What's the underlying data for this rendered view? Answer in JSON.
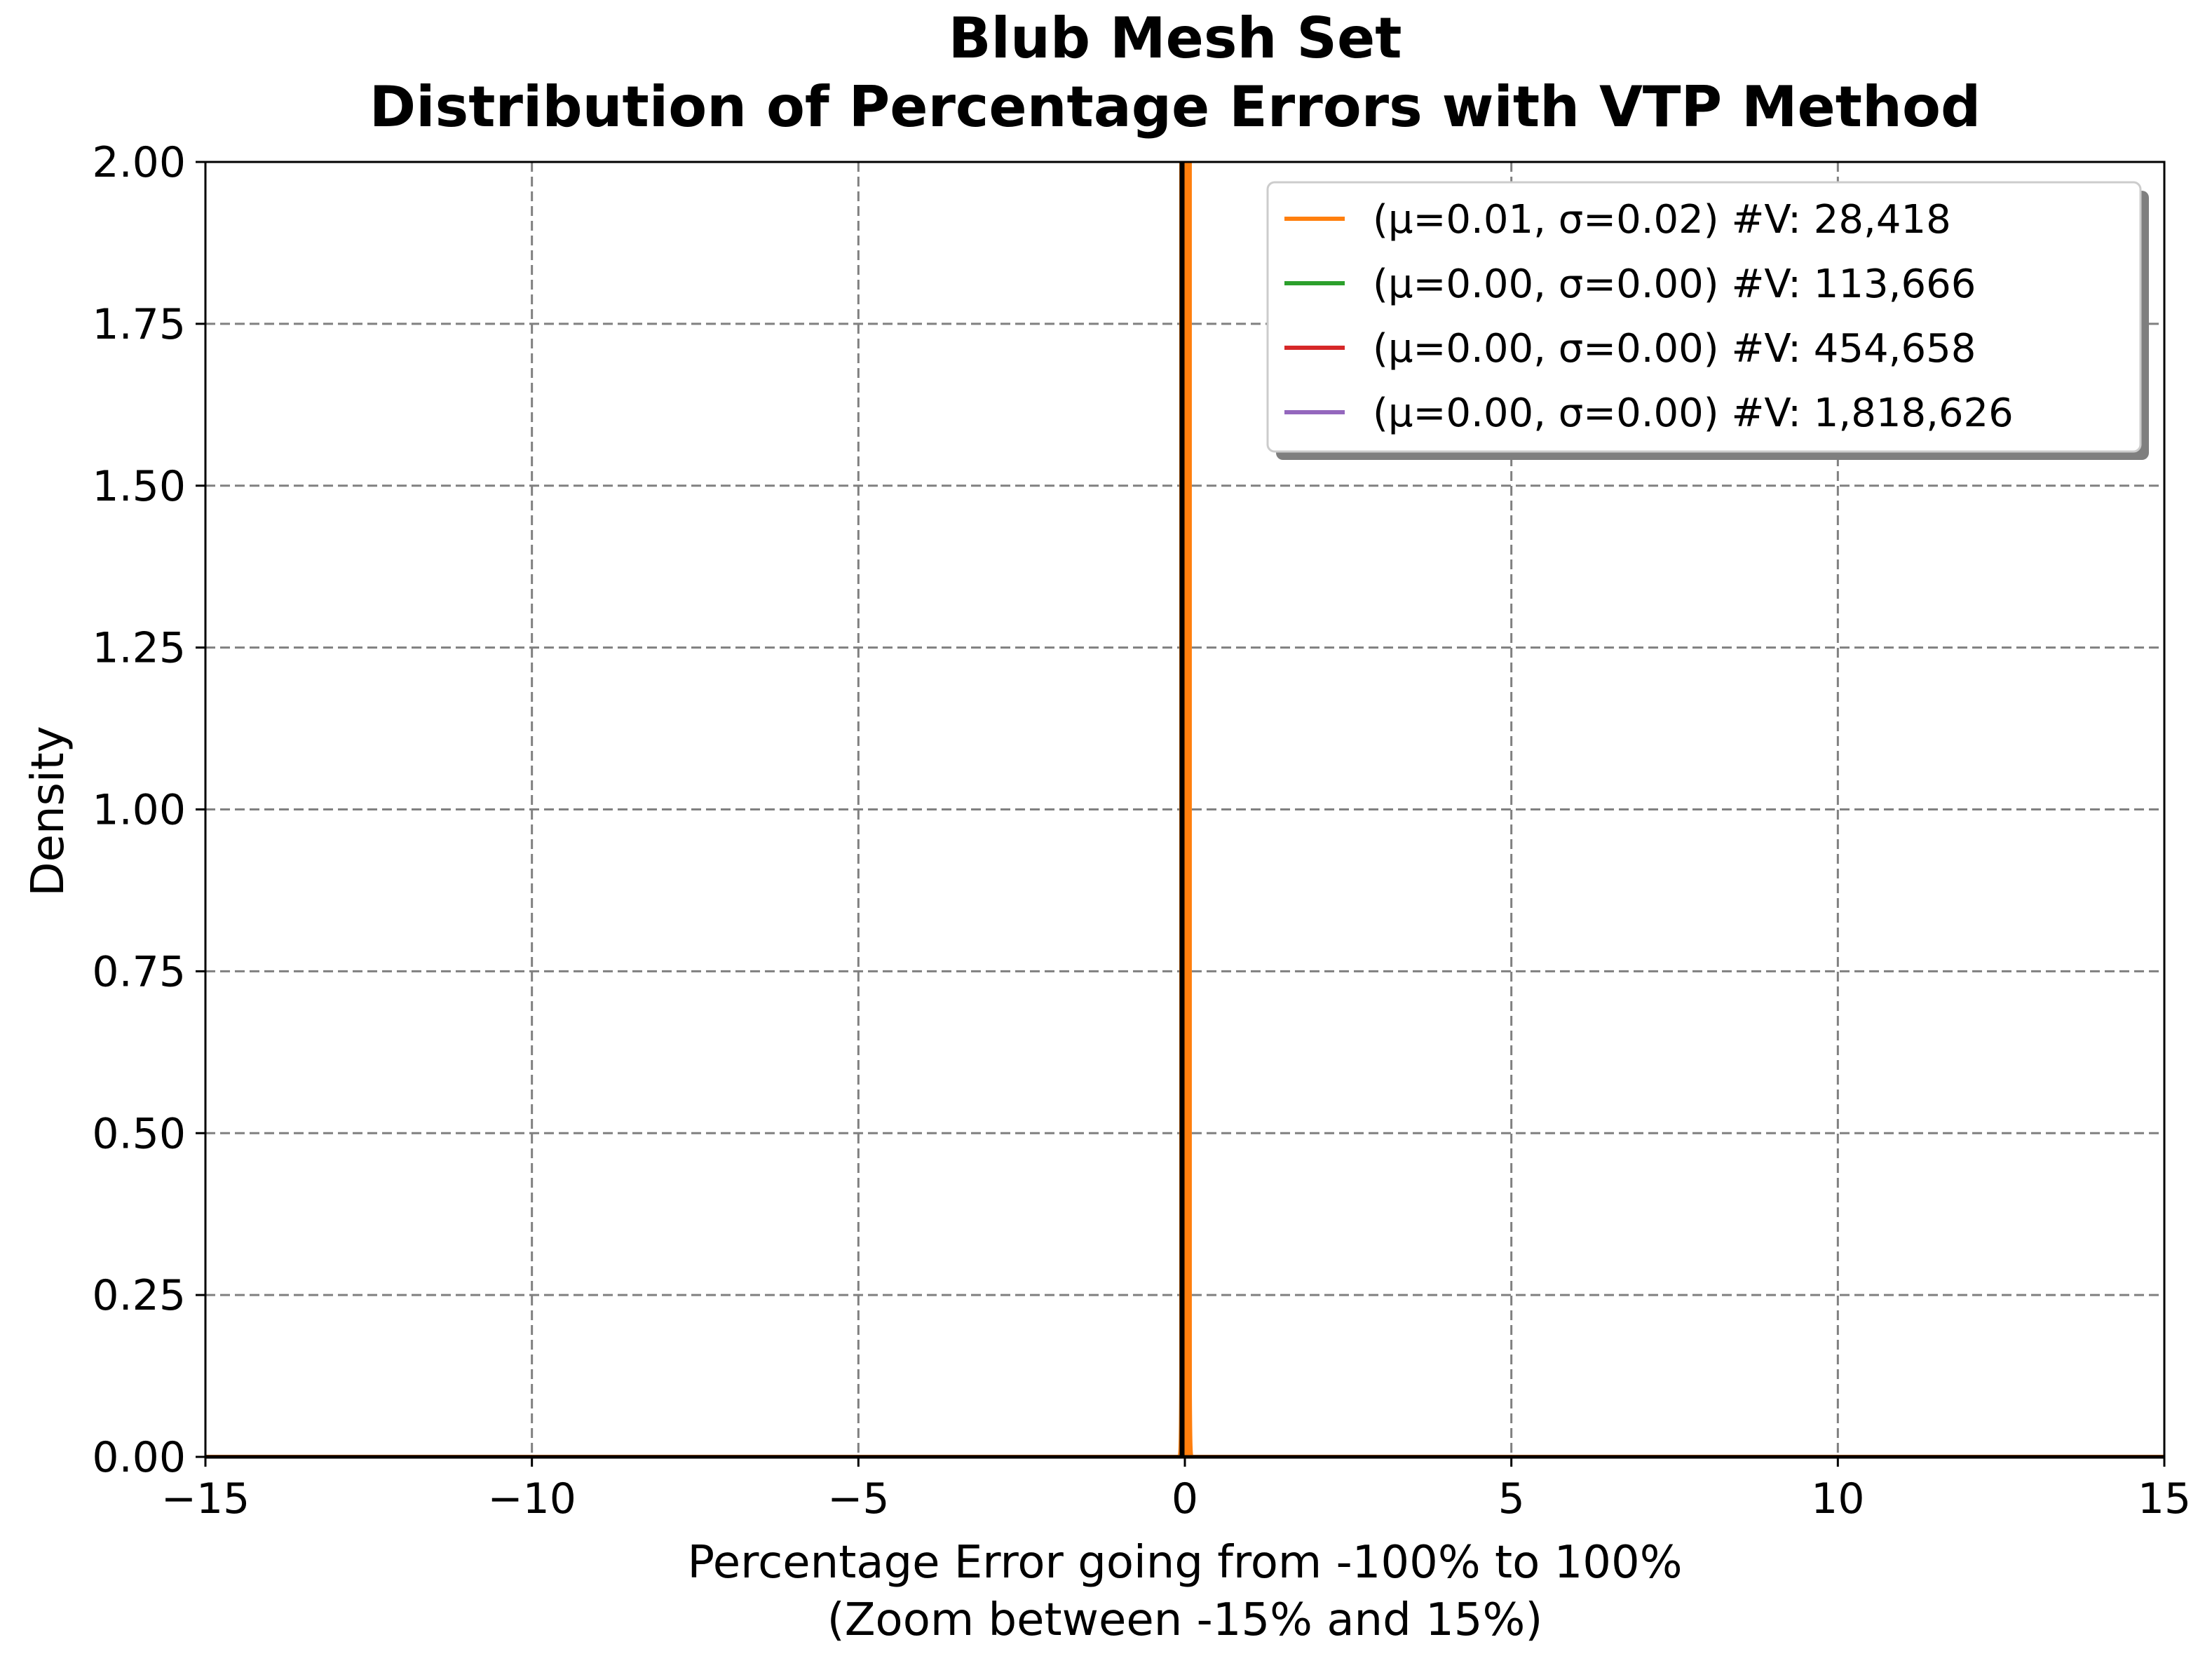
{
  "chart_data": {
    "type": "line",
    "title_line1": "Blub Mesh Set",
    "title_line2": "Distribution of Percentage Errors with VTP Method",
    "xlabel_line1": "Percentage Error going from -100% to 100%",
    "xlabel_line2": "(Zoom between -15% and 15%)",
    "ylabel": "Density",
    "xlim": [
      -15,
      15
    ],
    "ylim": [
      0,
      2
    ],
    "xticks": [
      -15,
      -10,
      -5,
      0,
      5,
      10,
      15
    ],
    "xtick_labels": [
      "−15",
      "−10",
      "−5",
      "0",
      "5",
      "10",
      "15"
    ],
    "yticks": [
      0,
      0.25,
      0.5,
      0.75,
      1.0,
      1.25,
      1.5,
      1.75,
      2.0
    ],
    "ytick_labels": [
      "0.00",
      "0.25",
      "0.50",
      "0.75",
      "1.00",
      "1.25",
      "1.50",
      "1.75",
      "2.00"
    ],
    "grid": true,
    "legend_position": "top-right",
    "series": [
      {
        "name": "(μ=0.01, σ=0.02) #V: 28,418",
        "mean": 0.01,
        "std": 0.02,
        "color": "#ff7f0e"
      },
      {
        "name": "(μ=0.00, σ=0.00) #V: 113,666",
        "mean": 0.0,
        "std": 0.0,
        "color": "#2ca02c"
      },
      {
        "name": "(μ=0.00, σ=0.00) #V: 454,658",
        "mean": 0.0,
        "std": 0.0,
        "color": "#d62728"
      },
      {
        "name": "(μ=0.00, σ=0.00) #V: 1,818,626",
        "mean": 0.0,
        "std": 0.0,
        "color": "#9467bd"
      }
    ],
    "reference_line": {
      "x": 0,
      "color": "#000000"
    }
  }
}
